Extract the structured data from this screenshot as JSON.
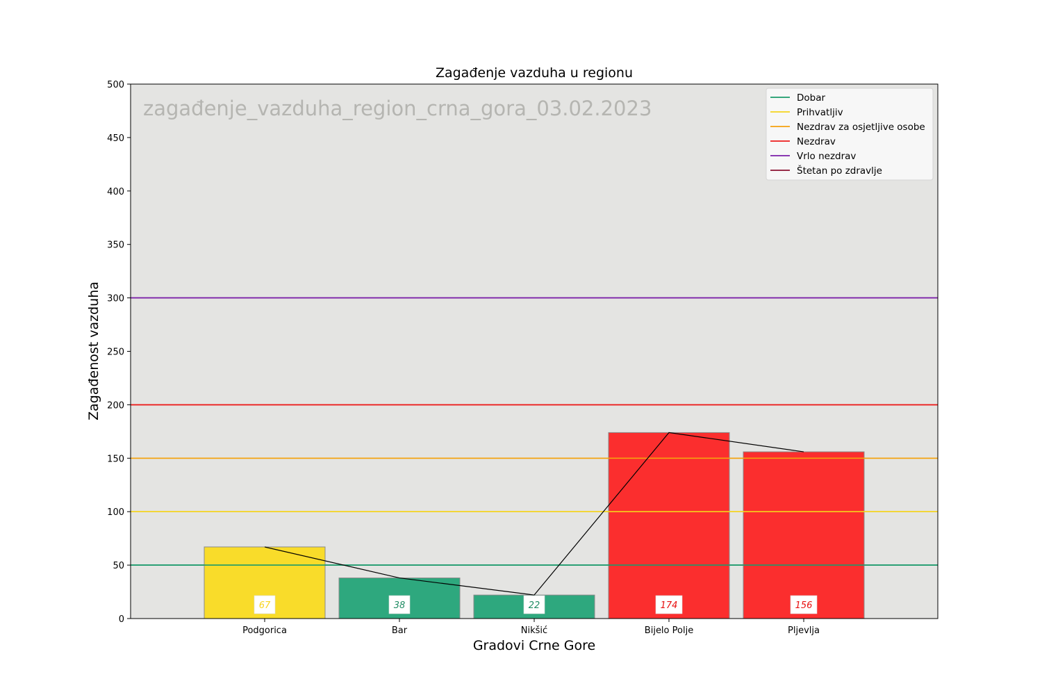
{
  "chart_data": {
    "type": "bar",
    "title": "Zagađenje vazduha u regionu",
    "watermark": "zagađenje_vazduha_region_crna_gora_03.02.2023",
    "xlabel": "Gradovi Crne Gore",
    "ylabel": "Zagađenost vazduha",
    "ylim": [
      0,
      500
    ],
    "yticks": [
      "0",
      "50",
      "100",
      "150",
      "200",
      "250",
      "300",
      "350",
      "400",
      "450",
      "500"
    ],
    "categories": [
      "Podgorica",
      "Bar",
      "Nikšić",
      "Bijelo Polje",
      "Pljevlja"
    ],
    "values": [
      67,
      38,
      22,
      174,
      156
    ],
    "value_labels": [
      "67",
      "38",
      "22",
      "174",
      "156"
    ],
    "bar_colors": [
      "#f9dc2a",
      "#2ea87e",
      "#2ea87e",
      "#fb2e2e",
      "#fb2e2e"
    ],
    "label_colors": [
      "#f9d41e",
      "#1f8c63",
      "#1f8c63",
      "#e81010",
      "#e81010"
    ],
    "connecting_line": true,
    "grid": false,
    "background": "#e4e4e2",
    "thresholds": [
      {
        "name": "Dobar",
        "value": 50,
        "color": "#1a9a6b",
        "visible": true
      },
      {
        "name": "Prihvatljiv",
        "value": 100,
        "color": "#f5d31c",
        "visible": true
      },
      {
        "name": "Nezdrav za osjetljive osobe",
        "value": 150,
        "color": "#f5a20e",
        "visible": true
      },
      {
        "name": "Nezdrav",
        "value": 200,
        "color": "#ec1b1b",
        "visible": true
      },
      {
        "name": "Vrlo nezdrav",
        "value": 300,
        "color": "#7a1ea8",
        "visible": true
      },
      {
        "name": "Štetan po zdravlje",
        "value": 500,
        "color": "#8b1030",
        "visible": false
      }
    ],
    "legend_position": "top-right"
  }
}
